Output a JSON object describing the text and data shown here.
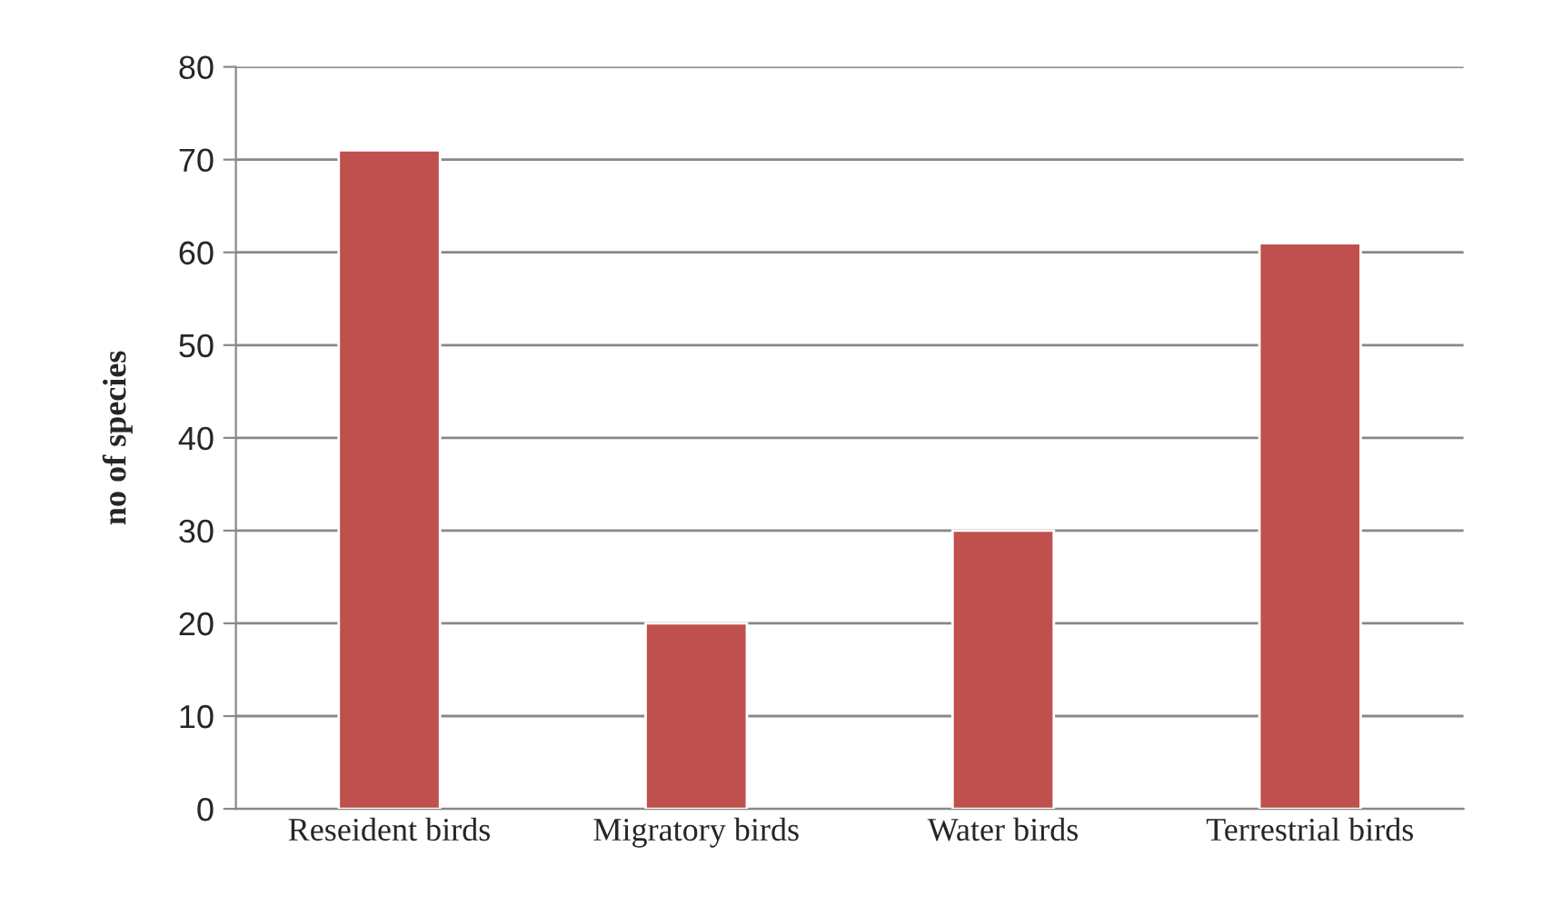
{
  "chart_data": {
    "type": "bar",
    "ylabel": "no of species",
    "categories": [
      "Reseident birds",
      "Migratory birds",
      "Water birds",
      "Terrestrial birds"
    ],
    "values": [
      71,
      20,
      30,
      61
    ],
    "color": "#c0504d",
    "ylim": [
      0,
      80
    ],
    "yticks": [
      0,
      10,
      20,
      30,
      40,
      50,
      60,
      70,
      80
    ],
    "grid": "y",
    "legend": false
  }
}
